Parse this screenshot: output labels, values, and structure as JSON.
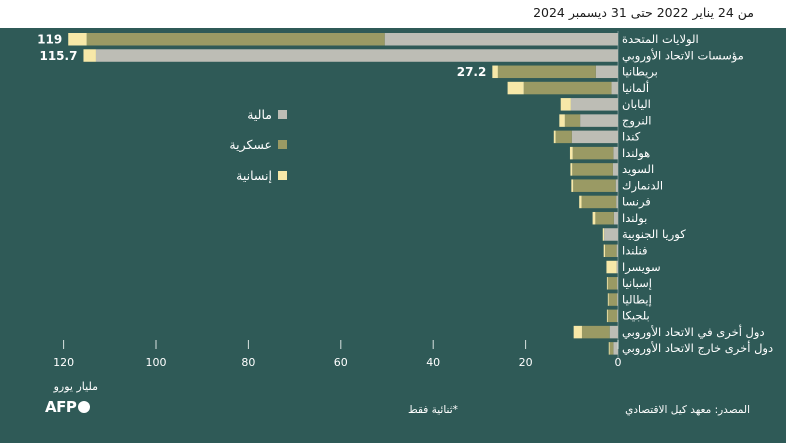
{
  "subtitle": "من 24 يناير 2022 حتى 31 ديسمبر 2024",
  "source": "المصدر: معهد كيل الاقتصادي",
  "footnote": "*ثنائية فقط",
  "logo": "AFP",
  "colors": {
    "background": "#2f5a57",
    "financial": "#bdbdb5",
    "military": "#9a9a64",
    "humanitarian": "#f7e8a8",
    "text": "#ffffff"
  },
  "chart_data": {
    "type": "bar",
    "orientation": "horizontal-stacked",
    "x_direction": "right-to-left",
    "xlabel": "مليار يورو",
    "xlim": [
      0,
      125
    ],
    "xticks": [
      0,
      20,
      40,
      60,
      80,
      100,
      120
    ],
    "categories": [
      "الولايات المتحدة",
      "مؤسسات الاتحاد الأوروبي",
      "بريطانيا",
      "ألمانيا",
      "اليابان",
      "النروج",
      "كندا",
      "هولندا",
      "السويد",
      "الدنمارك",
      "فرنسا",
      "بولندا",
      "كوريا الجنوبية",
      "فنلندا",
      "سويسرا",
      "إسبانيا",
      "إيطاليا",
      "بلجيكا",
      "دول أخرى في الاتحاد الأوروبي",
      "دول أخرى خارج الاتحاد الأوروبي"
    ],
    "series": [
      {
        "name": "مالية",
        "values": [
          50.5,
          113,
          4.8,
          1.4,
          10.2,
          8.2,
          10.0,
          1.0,
          1.1,
          0.5,
          0.4,
          0.9,
          3.0,
          0.3,
          0.3,
          0.2,
          0.2,
          0.2,
          1.8,
          1.0
        ]
      },
      {
        "name": "عسكرية",
        "values": [
          64.5,
          0,
          21.2,
          19.0,
          0,
          3.3,
          3.5,
          8.8,
          8.8,
          9.2,
          7.5,
          4.0,
          0,
          2.5,
          0,
          2.0,
          1.8,
          2.0,
          6.0,
          0.8
        ]
      },
      {
        "name": "إنسانية",
        "values": [
          4.0,
          2.7,
          1.2,
          3.5,
          2.2,
          1.2,
          0.4,
          0.6,
          0.4,
          0.4,
          0.5,
          0.6,
          0.3,
          0.3,
          2.2,
          0.2,
          0.2,
          0.2,
          1.8,
          0.2
        ]
      }
    ],
    "annotations": [
      {
        "category": "الولايات المتحدة",
        "text": "119"
      },
      {
        "category": "مؤسسات الاتحاد الأوروبي",
        "text": "115.7"
      },
      {
        "category": "بريطانيا",
        "text": "27.2"
      }
    ],
    "legend_position": "middle-left"
  }
}
